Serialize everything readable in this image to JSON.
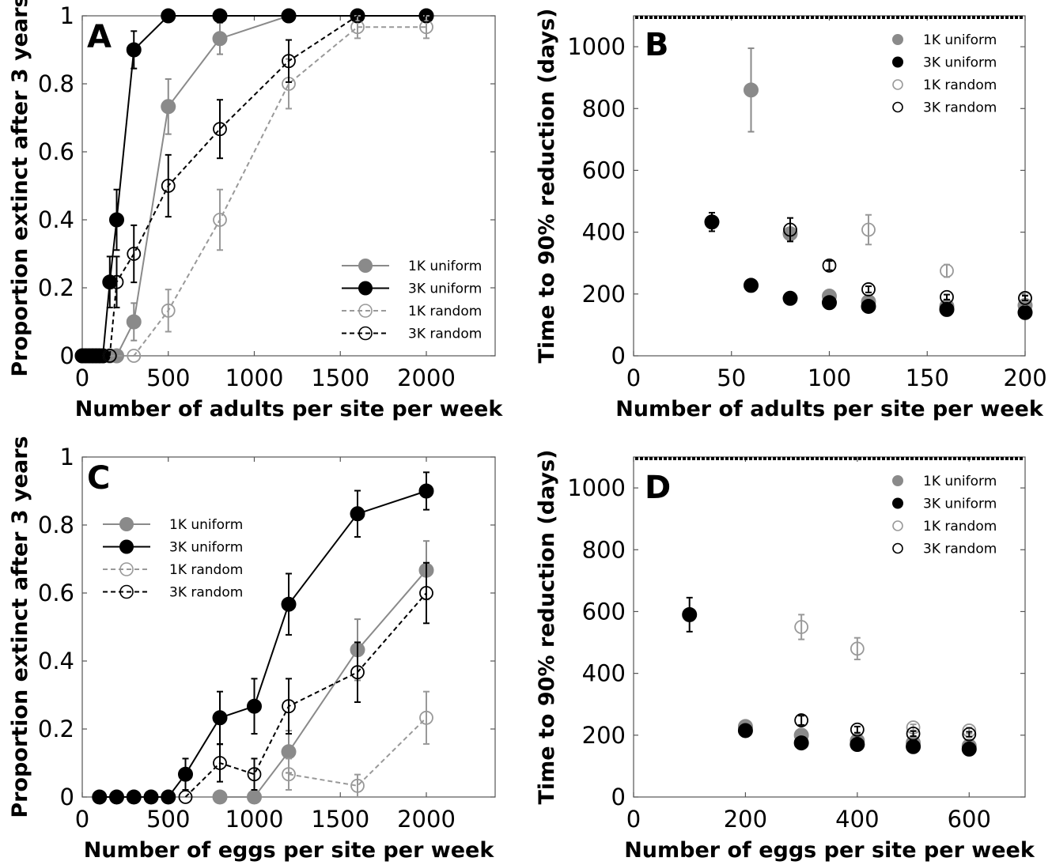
{
  "colors": {
    "gray": "#8a8a8a",
    "black": "#000000",
    "light_gray": "#999999"
  },
  "chart_data": [
    {
      "panel": "A",
      "type": "line",
      "xlabel": "Number of adults per site per week",
      "ylabel": "Proportion extinct after 3 years",
      "xlim": [
        0,
        2400
      ],
      "ylim": [
        0,
        1
      ],
      "xticks": [
        0,
        500,
        1000,
        1500,
        2000
      ],
      "yticks": [
        0,
        0.2,
        0.4,
        0.6,
        0.8,
        1
      ],
      "ytick_labels": [
        "0",
        "0.2",
        "0.4",
        "0.6",
        "0.8",
        "1"
      ],
      "legend_position": "bottom-right",
      "series": [
        {
          "name": "1K uniform",
          "marker": "filled",
          "color": "gray",
          "line": "solid",
          "points": [
            {
              "x": 0,
              "y": 0
            },
            {
              "x": 20,
              "y": 0
            },
            {
              "x": 40,
              "y": 0
            },
            {
              "x": 60,
              "y": 0
            },
            {
              "x": 80,
              "y": 0
            },
            {
              "x": 100,
              "y": 0
            },
            {
              "x": 120,
              "y": 0
            },
            {
              "x": 160,
              "y": 0
            },
            {
              "x": 200,
              "y": 0
            },
            {
              "x": 300,
              "y": 0.1,
              "err": 0.055
            },
            {
              "x": 500,
              "y": 0.733,
              "err": 0.081
            },
            {
              "x": 800,
              "y": 0.933,
              "err": 0.046
            },
            {
              "x": 1200,
              "y": 1
            },
            {
              "x": 1600,
              "y": 1
            },
            {
              "x": 2000,
              "y": 1
            }
          ]
        },
        {
          "name": "3K uniform",
          "marker": "filled",
          "color": "black",
          "line": "solid",
          "points": [
            {
              "x": 0,
              "y": 0
            },
            {
              "x": 20,
              "y": 0
            },
            {
              "x": 40,
              "y": 0
            },
            {
              "x": 60,
              "y": 0
            },
            {
              "x": 80,
              "y": 0
            },
            {
              "x": 100,
              "y": 0
            },
            {
              "x": 120,
              "y": 0
            },
            {
              "x": 160,
              "y": 0.217,
              "err": 0.075
            },
            {
              "x": 200,
              "y": 0.4,
              "err": 0.089
            },
            {
              "x": 300,
              "y": 0.9,
              "err": 0.055
            },
            {
              "x": 500,
              "y": 1
            },
            {
              "x": 800,
              "y": 1
            },
            {
              "x": 1200,
              "y": 1
            },
            {
              "x": 1600,
              "y": 1
            },
            {
              "x": 2000,
              "y": 1
            }
          ]
        },
        {
          "name": "1K random",
          "marker": "open",
          "color": "light_gray",
          "line": "dashed",
          "points": [
            {
              "x": 160,
              "y": 0
            },
            {
              "x": 300,
              "y": 0
            },
            {
              "x": 500,
              "y": 0.133,
              "err": 0.062
            },
            {
              "x": 800,
              "y": 0.4,
              "err": 0.089
            },
            {
              "x": 1200,
              "y": 0.8,
              "err": 0.073
            },
            {
              "x": 1600,
              "y": 0.967,
              "err": 0.033
            },
            {
              "x": 2000,
              "y": 0.967,
              "err": 0.033
            }
          ]
        },
        {
          "name": "3K random",
          "marker": "open",
          "color": "black",
          "line": "dashed",
          "points": [
            {
              "x": 160,
              "y": 0
            },
            {
              "x": 200,
              "y": 0.217,
              "err": 0.075
            },
            {
              "x": 300,
              "y": 0.3,
              "err": 0.084
            },
            {
              "x": 500,
              "y": 0.5,
              "err": 0.091
            },
            {
              "x": 800,
              "y": 0.667,
              "err": 0.086
            },
            {
              "x": 1200,
              "y": 0.867,
              "err": 0.062
            },
            {
              "x": 1600,
              "y": 1
            },
            {
              "x": 2000,
              "y": 1
            }
          ]
        }
      ]
    },
    {
      "panel": "B",
      "type": "scatter",
      "xlabel": "Number of adults per site per week",
      "ylabel": "Time to 90% reduction (days)",
      "xlim": [
        0,
        200
      ],
      "ylim": [
        0,
        1100
      ],
      "xticks": [
        0,
        50,
        100,
        150,
        200
      ],
      "yticks": [
        0,
        200,
        400,
        600,
        800,
        1000
      ],
      "reference_line_y": 1095,
      "legend_position": "top-right",
      "series": [
        {
          "name": "1K uniform",
          "marker": "filled",
          "color": "gray",
          "points": [
            {
              "x": 60,
              "y": 860,
              "err": 135
            },
            {
              "x": 80,
              "y": 395,
              "err": 15
            },
            {
              "x": 100,
              "y": 193,
              "err": 8
            },
            {
              "x": 120,
              "y": 175,
              "err": 8
            },
            {
              "x": 160,
              "y": 160,
              "err": 6
            },
            {
              "x": 200,
              "y": 163,
              "err": 6
            }
          ]
        },
        {
          "name": "3K uniform",
          "marker": "filled",
          "color": "black",
          "points": [
            {
              "x": 40,
              "y": 433,
              "err": 30
            },
            {
              "x": 60,
              "y": 228,
              "err": 8
            },
            {
              "x": 80,
              "y": 186,
              "err": 6
            },
            {
              "x": 100,
              "y": 172,
              "err": 6
            },
            {
              "x": 120,
              "y": 160,
              "err": 5
            },
            {
              "x": 160,
              "y": 150,
              "err": 5
            },
            {
              "x": 200,
              "y": 140,
              "err": 5
            }
          ]
        },
        {
          "name": "1K random",
          "marker": "open",
          "color": "light_gray",
          "points": [
            {
              "x": 120,
              "y": 408,
              "err": 48
            },
            {
              "x": 160,
              "y": 275,
              "err": 20
            },
            {
              "x": 200,
              "y": 185,
              "err": 8
            }
          ]
        },
        {
          "name": "3K random",
          "marker": "open",
          "color": "black",
          "points": [
            {
              "x": 80,
              "y": 408,
              "err": 38
            },
            {
              "x": 100,
              "y": 292,
              "err": 15
            },
            {
              "x": 120,
              "y": 215,
              "err": 10
            },
            {
              "x": 160,
              "y": 190,
              "err": 8
            },
            {
              "x": 200,
              "y": 187,
              "err": 8
            }
          ]
        }
      ]
    },
    {
      "panel": "C",
      "type": "line",
      "xlabel": "Number of eggs per site per week",
      "ylabel": "Proportion extinct after 3 years",
      "xlim": [
        0,
        2400
      ],
      "ylim": [
        0,
        1
      ],
      "xticks": [
        0,
        500,
        1000,
        1500,
        2000
      ],
      "yticks": [
        0,
        0.2,
        0.4,
        0.6,
        0.8,
        1
      ],
      "ytick_labels": [
        "0",
        "0.2",
        "0.4",
        "0.6",
        "0.8",
        "1"
      ],
      "legend_position": "top-left",
      "series": [
        {
          "name": "1K uniform",
          "marker": "filled",
          "color": "gray",
          "line": "solid",
          "points": [
            {
              "x": 800,
              "y": 0
            },
            {
              "x": 1000,
              "y": 0
            },
            {
              "x": 1200,
              "y": 0.133,
              "err": 0.062
            },
            {
              "x": 1600,
              "y": 0.433,
              "err": 0.09
            },
            {
              "x": 2000,
              "y": 0.667,
              "err": 0.086
            }
          ]
        },
        {
          "name": "3K uniform",
          "marker": "filled",
          "color": "black",
          "line": "solid",
          "points": [
            {
              "x": 100,
              "y": 0
            },
            {
              "x": 200,
              "y": 0
            },
            {
              "x": 300,
              "y": 0
            },
            {
              "x": 400,
              "y": 0
            },
            {
              "x": 500,
              "y": 0
            },
            {
              "x": 600,
              "y": 0.067,
              "err": 0.046
            },
            {
              "x": 800,
              "y": 0.233,
              "err": 0.077
            },
            {
              "x": 1000,
              "y": 0.267,
              "err": 0.081
            },
            {
              "x": 1200,
              "y": 0.567,
              "err": 0.09
            },
            {
              "x": 1600,
              "y": 0.833,
              "err": 0.068
            },
            {
              "x": 2000,
              "y": 0.9,
              "err": 0.055
            }
          ]
        },
        {
          "name": "1K random",
          "marker": "open",
          "color": "light_gray",
          "line": "dashed",
          "points": [
            {
              "x": 1200,
              "y": 0.067,
              "err": 0.046
            },
            {
              "x": 1600,
              "y": 0.033,
              "err": 0.033
            },
            {
              "x": 2000,
              "y": 0.233,
              "err": 0.077
            }
          ]
        },
        {
          "name": "3K random",
          "marker": "open",
          "color": "black",
          "line": "dashed",
          "points": [
            {
              "x": 600,
              "y": 0
            },
            {
              "x": 800,
              "y": 0.1,
              "err": 0.055
            },
            {
              "x": 1000,
              "y": 0.067,
              "err": 0.046
            },
            {
              "x": 1200,
              "y": 0.267,
              "err": 0.081
            },
            {
              "x": 1600,
              "y": 0.367,
              "err": 0.088
            },
            {
              "x": 2000,
              "y": 0.6,
              "err": 0.089
            }
          ]
        }
      ]
    },
    {
      "panel": "D",
      "type": "scatter",
      "xlabel": "Number of eggs per site per week",
      "ylabel": "Time to 90% reduction (days)",
      "xlim": [
        0,
        700
      ],
      "ylim": [
        0,
        1100
      ],
      "xticks": [
        0,
        200,
        400,
        600
      ],
      "yticks": [
        0,
        200,
        400,
        600,
        800,
        1000
      ],
      "reference_line_y": 1095,
      "legend_position": "top-right",
      "series": [
        {
          "name": "1K uniform",
          "marker": "filled",
          "color": "gray",
          "points": [
            {
              "x": 200,
              "y": 228,
              "err": 8
            },
            {
              "x": 300,
              "y": 200,
              "err": 8
            },
            {
              "x": 400,
              "y": 182,
              "err": 6
            },
            {
              "x": 500,
              "y": 175,
              "err": 6
            },
            {
              "x": 600,
              "y": 165,
              "err": 6
            }
          ]
        },
        {
          "name": "3K uniform",
          "marker": "filled",
          "color": "black",
          "points": [
            {
              "x": 100,
              "y": 590,
              "err": 55
            },
            {
              "x": 200,
              "y": 215,
              "err": 8
            },
            {
              "x": 300,
              "y": 175,
              "err": 6
            },
            {
              "x": 400,
              "y": 170,
              "err": 6
            },
            {
              "x": 500,
              "y": 163,
              "err": 5
            },
            {
              "x": 600,
              "y": 155,
              "err": 5
            }
          ]
        },
        {
          "name": "1K random",
          "marker": "open",
          "color": "light_gray",
          "points": [
            {
              "x": 300,
              "y": 550,
              "err": 40
            },
            {
              "x": 400,
              "y": 480,
              "err": 35
            },
            {
              "x": 500,
              "y": 225,
              "err": 10
            },
            {
              "x": 600,
              "y": 215,
              "err": 10
            }
          ]
        },
        {
          "name": "3K random",
          "marker": "open",
          "color": "black",
          "points": [
            {
              "x": 300,
              "y": 248,
              "err": 15
            },
            {
              "x": 400,
              "y": 218,
              "err": 10
            },
            {
              "x": 500,
              "y": 205,
              "err": 8
            },
            {
              "x": 600,
              "y": 203,
              "err": 8
            }
          ]
        }
      ]
    }
  ]
}
